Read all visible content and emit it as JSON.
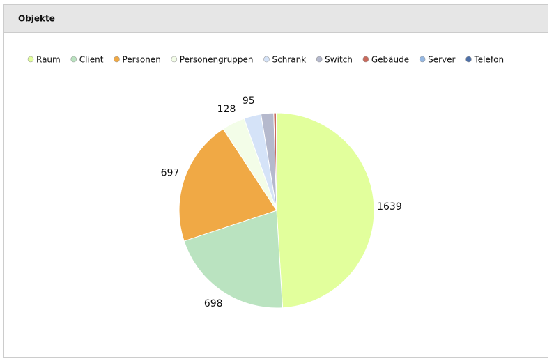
{
  "header": {
    "title": "Objekte"
  },
  "chart_data": {
    "type": "pie",
    "categories": [
      "Raum",
      "Client",
      "Personen",
      "Personengruppen",
      "Schrank",
      "Switch",
      "Gebäude",
      "Server",
      "Telefon"
    ],
    "values": [
      1639,
      698,
      697,
      128,
      95,
      70,
      14,
      1,
      1
    ],
    "colors": [
      "#e2ff9c",
      "#bae3c0",
      "#f0a945",
      "#f3fde8",
      "#d5e3f8",
      "#b5b9cd",
      "#c96a5c",
      "#95b8e3",
      "#4e70a8"
    ],
    "legend": "top"
  }
}
